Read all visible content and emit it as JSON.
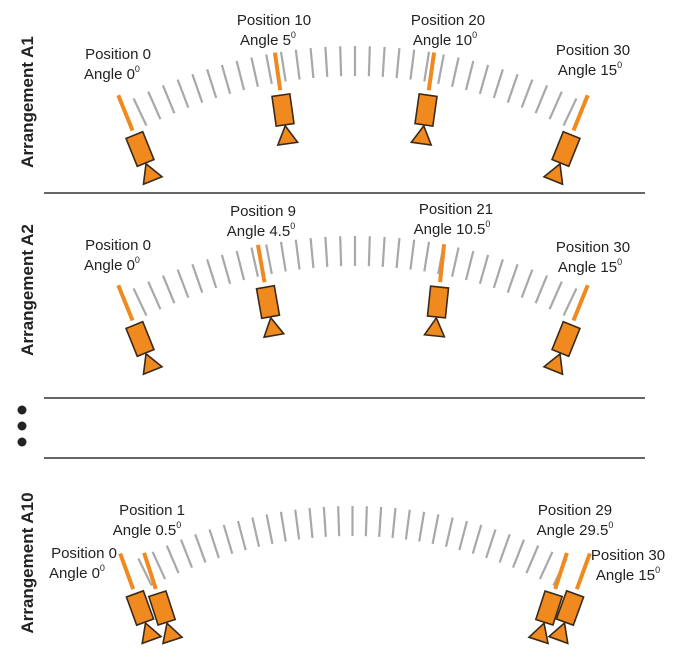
{
  "colors": {
    "accent": "#f08a1e",
    "outline": "#3a2a1a",
    "arc_tick": "#a8a8a8",
    "divider": "#333333",
    "text": "#222222"
  },
  "rows": [
    {
      "title": "Arrangement A1",
      "markers": [
        {
          "position_label": "Position 0",
          "angle_label": "Angle 0",
          "position": 0,
          "angle": 0
        },
        {
          "position_label": "Position 10",
          "angle_label": "Angle 5",
          "position": 10,
          "angle": 5
        },
        {
          "position_label": "Position 20",
          "angle_label": "Angle 10",
          "position": 20,
          "angle": 10
        },
        {
          "position_label": "Position 30",
          "angle_label": "Angle 15",
          "position": 30,
          "angle": 15
        }
      ]
    },
    {
      "title": "Arrangement A2",
      "markers": [
        {
          "position_label": "Position 0",
          "angle_label": "Angle 0",
          "position": 0,
          "angle": 0
        },
        {
          "position_label": "Position 9",
          "angle_label": "Angle 4.5",
          "position": 9,
          "angle": 4.5
        },
        {
          "position_label": "Position 21",
          "angle_label": "Angle 10.5",
          "position": 21,
          "angle": 10.5
        },
        {
          "position_label": "Position 30",
          "angle_label": "Angle 15",
          "position": 30,
          "angle": 15
        }
      ]
    },
    {
      "title": "Arrangement A10",
      "markers": [
        {
          "position_label": "Position 0",
          "angle_label": "Angle 0",
          "position": 0,
          "angle": 0
        },
        {
          "position_label": "Position 1",
          "angle_label": "Angle 0.5",
          "position": 1,
          "angle": 0.5
        },
        {
          "position_label": "Position 29",
          "angle_label": "Angle 29.5",
          "position": 29,
          "angle": 29.5
        },
        {
          "position_label": "Position 30",
          "angle_label": "Angle 15",
          "position": 30,
          "angle": 15
        }
      ]
    }
  ],
  "degree_symbol": "0",
  "ellipsis_marker": "•••"
}
